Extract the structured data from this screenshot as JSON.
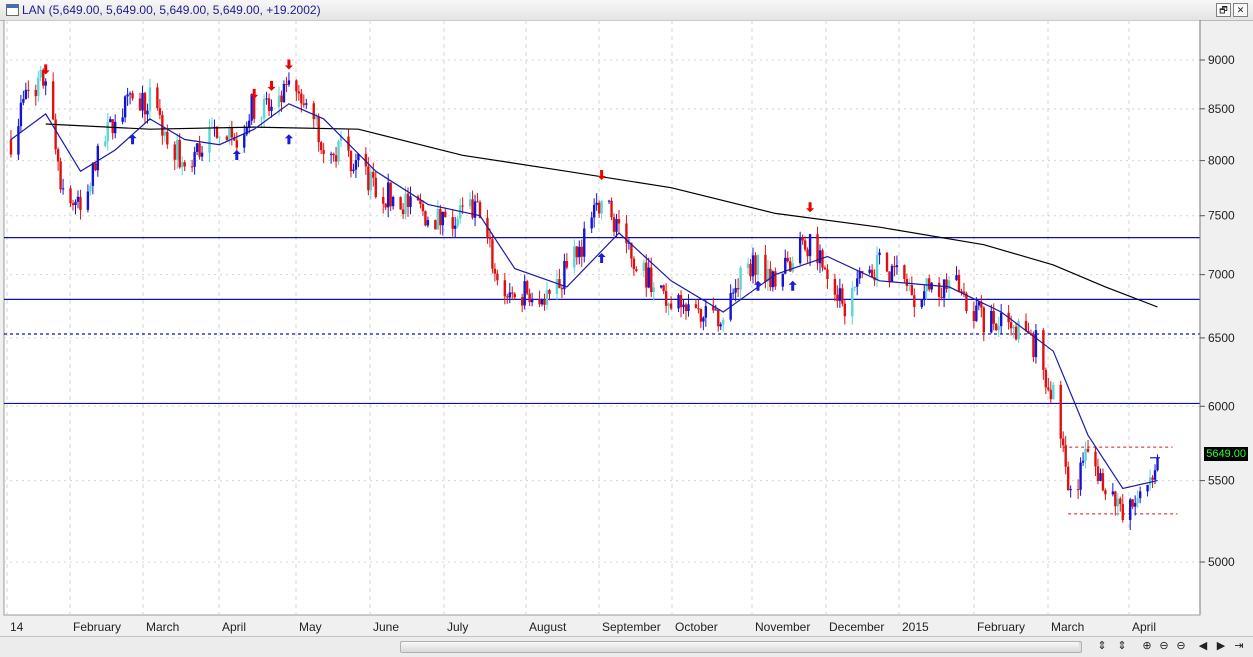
{
  "window": {
    "title": "LAN (5,649.00, 5,649.00, 5,649.00, 5,649.00, +19.2002)",
    "restore_label": "🗗",
    "close_label": "✕"
  },
  "bottom_bar": {
    "nav_labels": [
      "⇕",
      "⇕",
      "⊕",
      "⊖",
      "⊖",
      "◀",
      "▶",
      "⇥"
    ]
  },
  "colors": {
    "up_candle": "#1414d2",
    "up_candle_light": "#5ad6d6",
    "down_candle": "#e01010",
    "ma_short": "#1a1aa8",
    "ma_long": "#000000",
    "level_line": "#1010b0",
    "signal_red": "#ee0000",
    "signal_blue": "#1a1ae0",
    "grid": "#d4d4d4"
  },
  "chart_data": {
    "type": "candlestick",
    "symbol": "LAN",
    "last_price_label": "5649.00",
    "y_scale": "log",
    "ylim": [
      4700,
      9500
    ],
    "y_ticks": [
      9000,
      8500,
      8000,
      7500,
      7000,
      6500,
      6000,
      5500,
      5000
    ],
    "x_range": [
      0,
      48.3
    ],
    "x_ticks": [
      {
        "label": "14",
        "week": 0
      },
      {
        "label": "February",
        "week": 4.3
      },
      {
        "label": "March",
        "week": 8.3
      },
      {
        "label": "April",
        "week": 12.4
      },
      {
        "label": "May",
        "week": 16.9
      },
      {
        "label": "June",
        "week": 21.3
      },
      {
        "label": "July",
        "week": 25.6
      },
      {
        "label": "August",
        "week": 30.0
      },
      {
        "label": "September",
        "week": 34.5
      },
      {
        "label": "October",
        "week": 38.4
      },
      {
        "label": "November",
        "week": 43.0
      },
      {
        "label": "December",
        "week": 47.2
      },
      {
        "label": "2015",
        "week": 51.5
      },
      {
        "label": "February",
        "week": 55.8
      },
      {
        "label": "March",
        "week": 60.2
      },
      {
        "label": "April",
        "week": 65.0
      }
    ],
    "horizontal_levels": [
      {
        "value": 7310,
        "style": "solid"
      },
      {
        "value": 6800,
        "style": "solid"
      },
      {
        "value": 6530,
        "style": "dashed"
      },
      {
        "value": 6020,
        "style": "solid"
      }
    ],
    "dashed_red_levels": [
      {
        "value": 5720,
        "from": "2015-03-10",
        "to": "2015-04-15"
      },
      {
        "value": 5290,
        "from": "2015-03-12",
        "to": "2015-04-17"
      }
    ],
    "weekly_close": [
      [
        "2014-01-10",
        8200
      ],
      [
        "2014-01-17",
        8700
      ],
      [
        "2014-01-24",
        8800
      ],
      [
        "2014-01-31",
        7700
      ],
      [
        "2014-02-07",
        7550
      ],
      [
        "2014-02-14",
        8000
      ],
      [
        "2014-02-21",
        8450
      ],
      [
        "2014-02-28",
        8550
      ],
      [
        "2014-03-07",
        8600
      ],
      [
        "2014-03-14",
        8200
      ],
      [
        "2014-03-21",
        7950
      ],
      [
        "2014-03-28",
        8150
      ],
      [
        "2014-04-04",
        8350
      ],
      [
        "2014-04-11",
        8200
      ],
      [
        "2014-04-18",
        8550
      ],
      [
        "2014-04-25",
        8500
      ],
      [
        "2014-05-02",
        8650
      ],
      [
        "2014-05-09",
        8500
      ],
      [
        "2014-05-16",
        8200
      ],
      [
        "2014-05-23",
        8100
      ],
      [
        "2014-05-30",
        7950
      ],
      [
        "2014-06-06",
        7750
      ],
      [
        "2014-06-13",
        7650
      ],
      [
        "2014-06-20",
        7600
      ],
      [
        "2014-06-27",
        7500
      ],
      [
        "2014-07-04",
        7450
      ],
      [
        "2014-07-11",
        7500
      ],
      [
        "2014-07-18",
        7550
      ],
      [
        "2014-07-25",
        6950
      ],
      [
        "2014-08-01",
        6800
      ],
      [
        "2014-08-08",
        6900
      ],
      [
        "2014-08-15",
        6800
      ],
      [
        "2014-08-22",
        7050
      ],
      [
        "2014-08-29",
        7300
      ],
      [
        "2014-09-05",
        7650
      ],
      [
        "2014-09-12",
        7400
      ],
      [
        "2014-09-19",
        7100
      ],
      [
        "2014-09-26",
        6950
      ],
      [
        "2014-10-03",
        6700
      ],
      [
        "2014-10-10",
        6800
      ],
      [
        "2014-10-17",
        6650
      ],
      [
        "2014-10-24",
        6700
      ],
      [
        "2014-10-31",
        6950
      ],
      [
        "2014-11-07",
        7150
      ],
      [
        "2014-11-14",
        6950
      ],
      [
        "2014-11-21",
        7150
      ],
      [
        "2014-11-28",
        7300
      ],
      [
        "2014-12-05",
        7050
      ],
      [
        "2014-12-12",
        6750
      ],
      [
        "2014-12-19",
        7000
      ],
      [
        "2014-12-26",
        7100
      ],
      [
        "2015-01-02",
        7000
      ],
      [
        "2015-01-09",
        6850
      ],
      [
        "2015-01-16",
        6900
      ],
      [
        "2015-01-23",
        6950
      ],
      [
        "2015-01-30",
        6800
      ],
      [
        "2015-02-06",
        6650
      ],
      [
        "2015-02-13",
        6600
      ],
      [
        "2015-02-20",
        6550
      ],
      [
        "2015-02-27",
        6450
      ],
      [
        "2015-03-06",
        6050
      ],
      [
        "2015-03-13",
        5450
      ],
      [
        "2015-03-20",
        5650
      ],
      [
        "2015-03-27",
        5500
      ],
      [
        "2015-04-03",
        5250
      ],
      [
        "2015-04-10",
        5400
      ],
      [
        "2015-04-17",
        5649
      ]
    ],
    "short_ma": [
      [
        "2014-01-10",
        8200
      ],
      [
        "2014-01-24",
        8450
      ],
      [
        "2014-02-07",
        7900
      ],
      [
        "2014-02-21",
        8100
      ],
      [
        "2014-03-07",
        8400
      ],
      [
        "2014-03-21",
        8200
      ],
      [
        "2014-04-04",
        8150
      ],
      [
        "2014-04-18",
        8300
      ],
      [
        "2014-05-02",
        8550
      ],
      [
        "2014-05-16",
        8400
      ],
      [
        "2014-06-06",
        7900
      ],
      [
        "2014-06-27",
        7600
      ],
      [
        "2014-07-18",
        7500
      ],
      [
        "2014-08-01",
        7050
      ],
      [
        "2014-08-22",
        6900
      ],
      [
        "2014-09-12",
        7350
      ],
      [
        "2014-10-03",
        6950
      ],
      [
        "2014-10-24",
        6700
      ],
      [
        "2014-11-14",
        7000
      ],
      [
        "2014-12-05",
        7150
      ],
      [
        "2014-12-26",
        6950
      ],
      [
        "2015-01-23",
        6900
      ],
      [
        "2015-02-13",
        6700
      ],
      [
        "2015-03-06",
        6400
      ],
      [
        "2015-03-20",
        5800
      ],
      [
        "2015-04-03",
        5450
      ],
      [
        "2015-04-17",
        5500
      ]
    ],
    "long_ma": [
      [
        "2014-01-24",
        8350
      ],
      [
        "2014-03-07",
        8300
      ],
      [
        "2014-04-18",
        8320
      ],
      [
        "2014-05-30",
        8300
      ],
      [
        "2014-07-11",
        8050
      ],
      [
        "2014-08-22",
        7900
      ],
      [
        "2014-10-03",
        7750
      ],
      [
        "2014-11-14",
        7520
      ],
      [
        "2014-12-26",
        7400
      ],
      [
        "2015-02-06",
        7250
      ],
      [
        "2015-03-06",
        7080
      ],
      [
        "2015-03-27",
        6900
      ],
      [
        "2015-04-17",
        6740
      ]
    ],
    "signals": [
      {
        "type": "sell",
        "date": "2014-01-24",
        "price": 8850
      },
      {
        "type": "buy",
        "date": "2014-02-28",
        "price": 8250
      },
      {
        "type": "sell",
        "date": "2014-04-18",
        "price": 8600
      },
      {
        "type": "sell",
        "date": "2014-04-25",
        "price": 8680
      },
      {
        "type": "buy",
        "date": "2014-04-11",
        "price": 8100
      },
      {
        "type": "buy",
        "date": "2014-05-02",
        "price": 8250
      },
      {
        "type": "sell",
        "date": "2014-05-02",
        "price": 8900
      },
      {
        "type": "sell",
        "date": "2014-09-05",
        "price": 7820
      },
      {
        "type": "buy",
        "date": "2014-09-05",
        "price": 7180
      },
      {
        "type": "buy",
        "date": "2014-11-07",
        "price": 6950
      },
      {
        "type": "buy",
        "date": "2014-11-21",
        "price": 6950
      },
      {
        "type": "sell",
        "date": "2014-11-28",
        "price": 7530
      }
    ]
  }
}
